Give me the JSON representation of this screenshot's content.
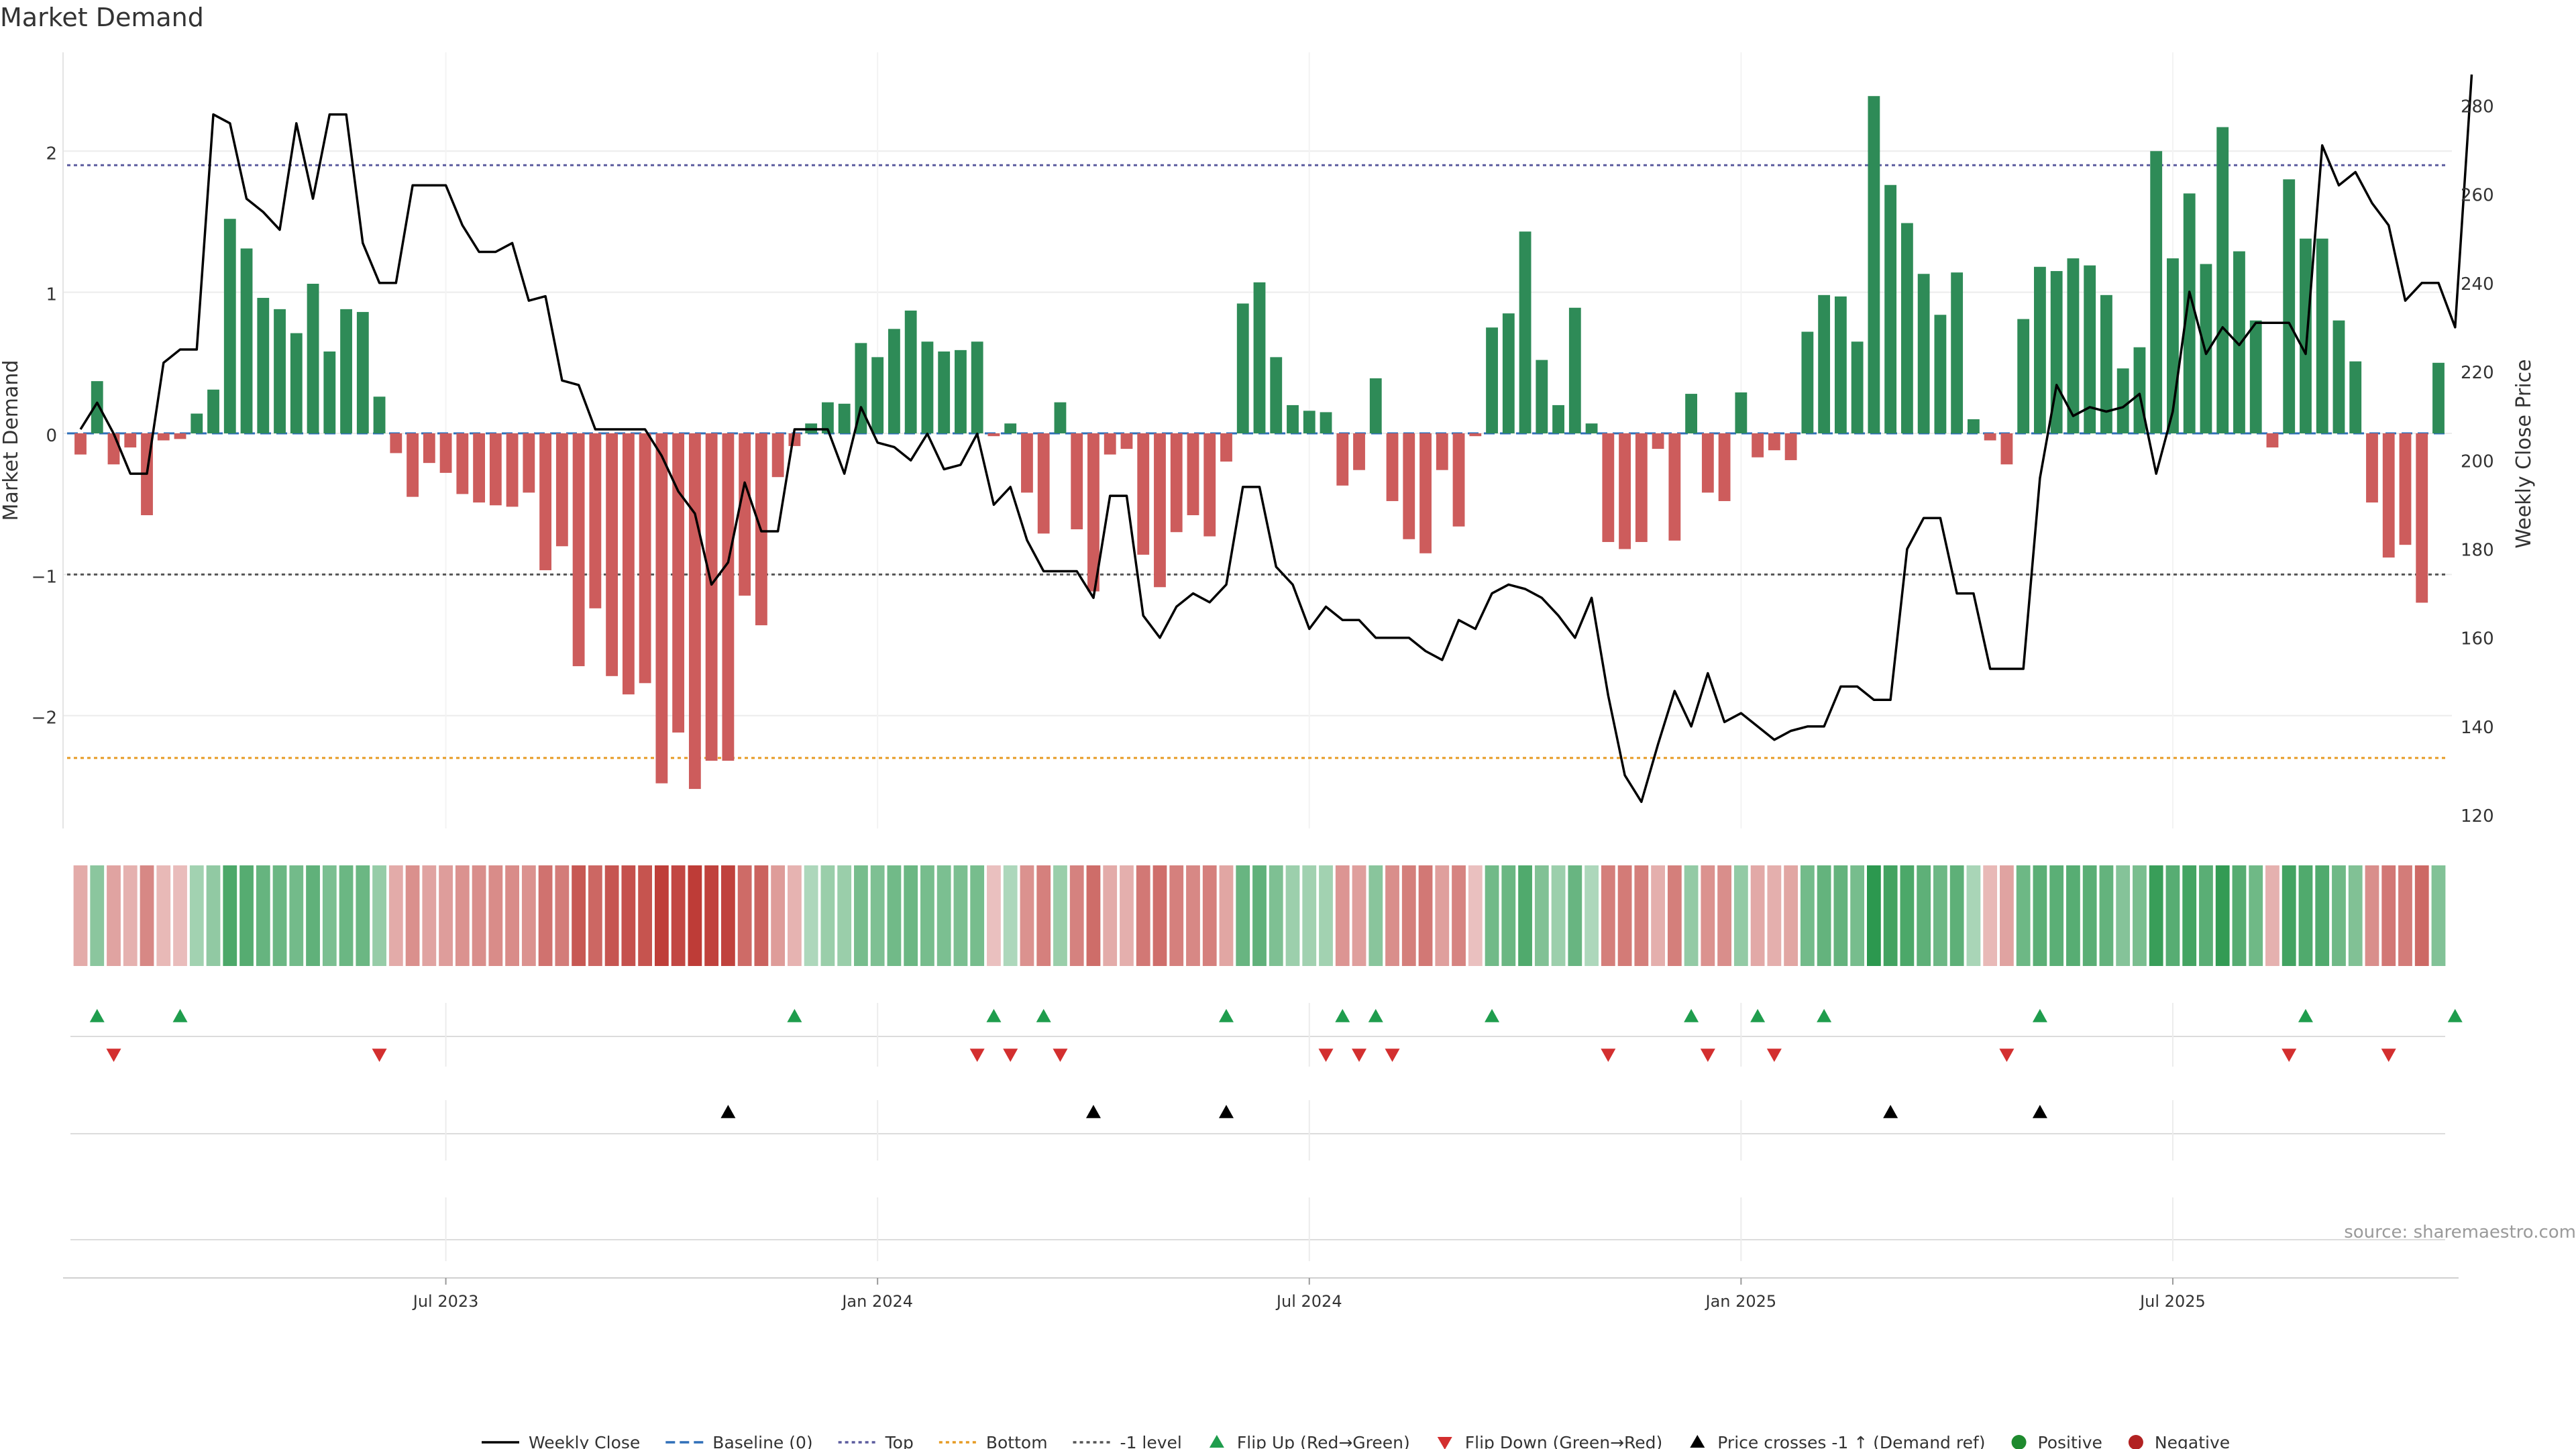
{
  "chart_data": {
    "type": "bar",
    "title": "Market Demand",
    "ylabel_left": "Market Demand",
    "ylabel_right": "Weekly Close Price",
    "ylim_left": [
      -2.8,
      2.7
    ],
    "ylim_right": [
      117,
      292
    ],
    "yticks_left": [
      2,
      1,
      0,
      -1,
      -2
    ],
    "ytick_labels_left": [
      "2",
      "1",
      "0",
      "−1",
      "−2"
    ],
    "yticks_right": [
      280,
      260,
      240,
      220,
      200,
      180,
      160,
      140,
      120
    ],
    "xticks": [
      "Jul 2023",
      "Jan 2024",
      "Jul 2024",
      "Jan 2025",
      "Jul 2025"
    ],
    "xtick_index": [
      22,
      48,
      74,
      100,
      126
    ],
    "reference_lines": {
      "top": 1.9,
      "bottom": -2.3,
      "minus_one": -1,
      "baseline": 0
    },
    "series": [
      {
        "name": "Market Demand",
        "values": [
          -0.15,
          0.37,
          -0.22,
          -0.1,
          -0.58,
          -0.05,
          -0.04,
          0.14,
          0.31,
          1.52,
          1.31,
          0.96,
          0.88,
          0.71,
          1.06,
          0.58,
          0.88,
          0.86,
          0.26,
          -0.14,
          -0.45,
          -0.21,
          -0.28,
          -0.43,
          -0.49,
          -0.51,
          -0.52,
          -0.42,
          -0.97,
          -0.8,
          -1.65,
          -1.24,
          -1.72,
          -1.85,
          -1.77,
          -2.48,
          -2.12,
          -2.52,
          -2.32,
          -2.32,
          -1.15,
          -1.36,
          -0.31,
          -0.09,
          0.07,
          0.22,
          0.21,
          0.64,
          0.54,
          0.74,
          0.87,
          0.65,
          0.58,
          0.59,
          0.65,
          -0.02,
          0.07,
          -0.42,
          -0.71,
          0.22,
          -0.68,
          -1.12,
          -0.15,
          -0.11,
          -0.86,
          -1.09,
          -0.7,
          -0.58,
          -0.73,
          -0.2,
          0.92,
          1.07,
          0.54,
          0.2,
          0.16,
          0.15,
          -0.37,
          -0.26,
          0.39,
          -0.48,
          -0.75,
          -0.85,
          -0.26,
          -0.66,
          -0.02,
          0.75,
          0.85,
          1.43,
          0.52,
          0.2,
          0.89,
          0.07,
          -0.77,
          -0.82,
          -0.77,
          -0.11,
          -0.76,
          0.28,
          -0.42,
          -0.48,
          0.29,
          -0.17,
          -0.12,
          -0.19,
          0.72,
          0.98,
          0.97,
          0.65,
          2.39,
          1.76,
          1.49,
          1.13,
          0.84,
          1.14,
          0.1,
          -0.05,
          -0.22,
          0.81,
          1.18,
          1.15,
          1.24,
          1.19,
          0.98,
          0.46,
          0.61,
          2.0,
          1.24,
          1.7,
          1.2,
          2.17,
          1.29,
          0.8,
          -0.1,
          1.8,
          1.38,
          1.38,
          0.8,
          0.51,
          -0.49,
          -0.88,
          -0.79,
          -1.2,
          0.5
        ]
      },
      {
        "name": "Weekly Close",
        "values": [
          207,
          213,
          206,
          197,
          197,
          222,
          225,
          225,
          278,
          276,
          259,
          256,
          252,
          276,
          259,
          278,
          278,
          249,
          240,
          240,
          262,
          262,
          262,
          253,
          247,
          247,
          249,
          236,
          237,
          218,
          217,
          207,
          207,
          207,
          207,
          201,
          193,
          188,
          172,
          177,
          195,
          184,
          184,
          207,
          207,
          207,
          197,
          212,
          204,
          203,
          200,
          206,
          198,
          199,
          206,
          190,
          194,
          182,
          175,
          175,
          175,
          169,
          192,
          192,
          165,
          160,
          167,
          170,
          168,
          172,
          194,
          194,
          176,
          172,
          162,
          167,
          164,
          164,
          160,
          160,
          160,
          157,
          155,
          164,
          162,
          170,
          172,
          171,
          169,
          165,
          160,
          169,
          147,
          129,
          123,
          136,
          148,
          140,
          152,
          141,
          143,
          140,
          137,
          139,
          140,
          140,
          149,
          149,
          146,
          146,
          180,
          187,
          187,
          170,
          170,
          153,
          153,
          153,
          196,
          217,
          210,
          212,
          211,
          212,
          215,
          197,
          211,
          238,
          224,
          230,
          226,
          231,
          231,
          231,
          224,
          271,
          262,
          265,
          258,
          253,
          236,
          240,
          240,
          230,
          287
        ]
      }
    ],
    "flip_up_index": [
      1,
      6,
      43,
      55,
      58,
      69,
      76,
      78,
      85,
      97,
      101,
      105,
      118,
      134,
      143
    ],
    "flip_down_index": [
      2,
      18,
      54,
      56,
      59,
      75,
      77,
      79,
      92,
      98,
      102,
      116,
      133,
      139
    ],
    "price_cross_index": [
      39,
      61,
      69,
      109,
      118
    ],
    "source": "source: sharemaestro.com",
    "legend": [
      {
        "label": "Weekly Close",
        "kind": "line-solid",
        "color": "#000000"
      },
      {
        "label": "Baseline (0)",
        "kind": "line-dash",
        "color": "#2f6fb8"
      },
      {
        "label": "Top",
        "kind": "line-dot",
        "color": "#5b5b9e"
      },
      {
        "label": "Bottom",
        "kind": "line-dot",
        "color": "#e69b24"
      },
      {
        "label": "-1 level",
        "kind": "line-dot",
        "color": "#555555"
      },
      {
        "label": "Flip Up (Red→Green)",
        "kind": "tri-up",
        "color": "#1f9d4d"
      },
      {
        "label": "Flip Down (Green→Red)",
        "kind": "tri-down",
        "color": "#d32f2f"
      },
      {
        "label": "Price crosses -1 ↑ (Demand ref)",
        "kind": "tri-up",
        "color": "#000000"
      },
      {
        "label": "Positive",
        "kind": "dot",
        "color": "#1e8a2e"
      },
      {
        "label": "Negative",
        "kind": "dot",
        "color": "#b22222"
      }
    ],
    "colors": {
      "positive_bar": "#2e8b57",
      "negative_bar": "#cd5c5c",
      "price_line": "#000000"
    }
  }
}
